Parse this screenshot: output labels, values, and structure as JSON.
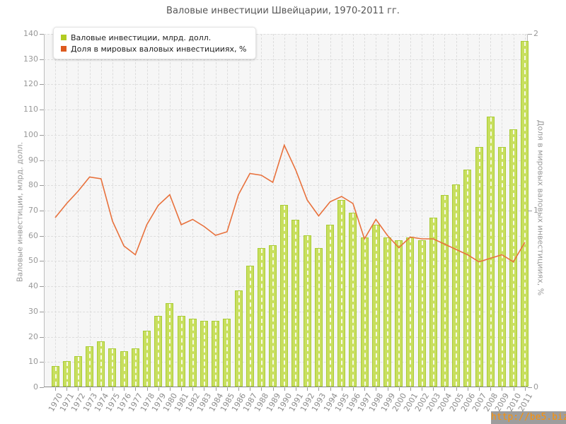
{
  "title": "Валовые инвестиции Швейцарии, 1970-2011 гг.",
  "watermark": {
    "text": "http://be5.biz/"
  },
  "legend": {
    "items": [
      {
        "label": "Валовые инвестиции, млрд. долл.",
        "color": "#b2cc22"
      },
      {
        "label": "Доля в мировых валовых инвестицииях, %",
        "color": "#dd5a1f"
      }
    ]
  },
  "chart_data": {
    "type": "bar",
    "title": "Валовые инвестиции Швейцарии, 1970-2011 гг.",
    "categories": [
      "1970",
      "1971",
      "1972",
      "1973",
      "1974",
      "1975",
      "1976",
      "1977",
      "1978",
      "1979",
      "1980",
      "1981",
      "1982",
      "1983",
      "1984",
      "1985",
      "1986",
      "1987",
      "1988",
      "1989",
      "1990",
      "1991",
      "1992",
      "1993",
      "1994",
      "1995",
      "1996",
      "1997",
      "1998",
      "1999",
      "2000",
      "2001",
      "2002",
      "2003",
      "2004",
      "2005",
      "2006",
      "2007",
      "2008",
      "2009",
      "2010",
      "2011"
    ],
    "series": [
      {
        "name": "Валовые инвестиции, млрд. долл.",
        "type": "bar",
        "axis": "left",
        "color": "#c8df5e",
        "values": [
          8,
          10,
          12,
          16,
          18,
          15,
          14,
          15,
          22,
          28,
          33,
          28,
          27,
          26,
          26,
          27,
          38,
          48,
          55,
          56,
          72,
          66,
          60,
          55,
          64,
          74,
          69,
          59,
          64,
          59,
          58,
          59,
          58,
          67,
          76,
          80,
          86,
          95,
          107,
          95,
          102,
          137
        ]
      },
      {
        "name": "Доля в мировых валовых инвестицииях, %",
        "type": "line",
        "axis": "right",
        "color": "#e8713c",
        "values": [
          0.96,
          1.04,
          1.11,
          1.19,
          1.18,
          0.94,
          0.8,
          0.75,
          0.92,
          1.03,
          1.09,
          0.92,
          0.95,
          0.91,
          0.86,
          0.88,
          1.09,
          1.21,
          1.2,
          1.16,
          1.37,
          1.23,
          1.06,
          0.97,
          1.05,
          1.08,
          1.04,
          0.84,
          0.95,
          0.86,
          0.79,
          0.85,
          0.84,
          0.84,
          0.81,
          0.78,
          0.75,
          0.71,
          0.73,
          0.75,
          0.71,
          0.82
        ]
      }
    ],
    "left_axis": {
      "label": "Валовые инвестиции, млрд. долл.",
      "min": 0,
      "max": 140,
      "step": 10
    },
    "right_axis": {
      "label": "Доля в мировых валовых инвестицииях, %",
      "min": 0,
      "max": 2,
      "step": 1
    },
    "grid": true,
    "legend_position": "top-left"
  }
}
